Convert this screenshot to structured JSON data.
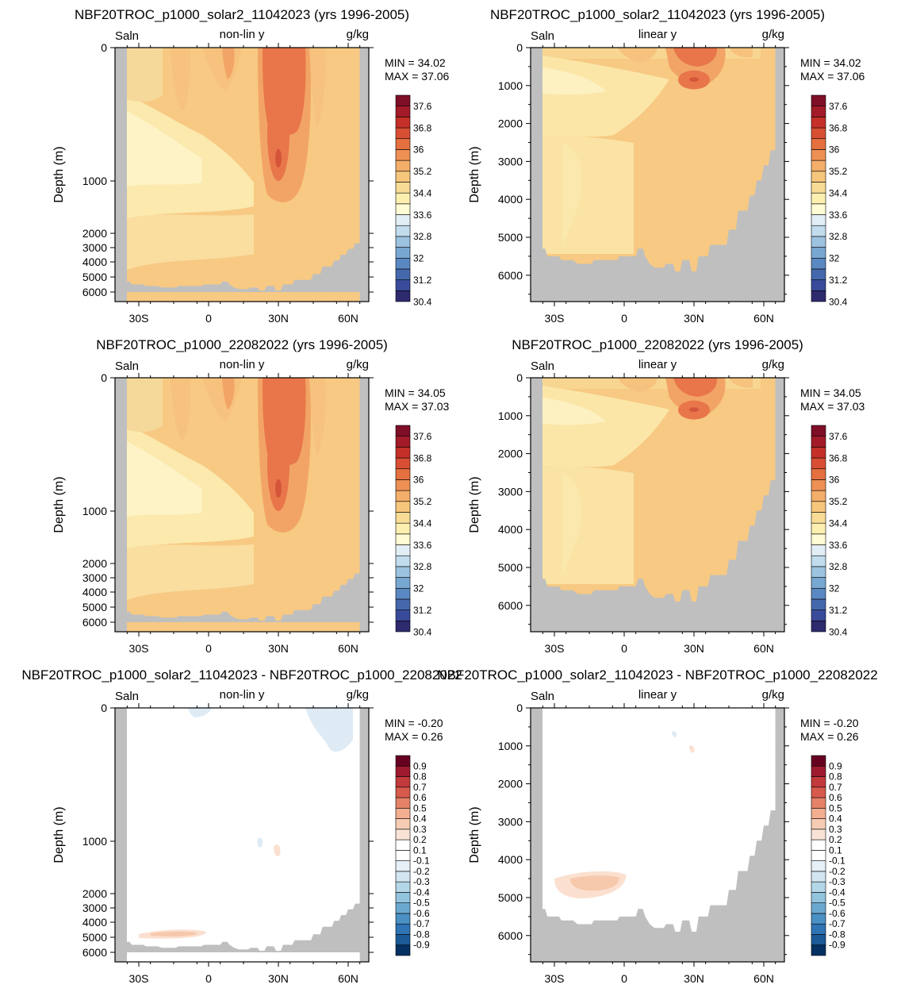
{
  "colors": {
    "land": "#bfbfbf",
    "full_field": [
      "#f5d99a",
      "#f6c27d",
      "#f2a466",
      "#e8764a",
      "#d4553a"
    ],
    "full_palette": [
      "#2e2a6e",
      "#3a4a9a",
      "#4568ad",
      "#5a88c2",
      "#78a7d2",
      "#9cc3e0",
      "#c1dced",
      "#e2eef5",
      "#fffbd4",
      "#fcefb0",
      "#f8dc95",
      "#f6c67c",
      "#f3ae69",
      "#ee9054",
      "#e5703f",
      "#d94f34",
      "#c53029",
      "#a31a28",
      "#7f0e27"
    ],
    "diff_palette": [
      "#053061",
      "#1b5a97",
      "#2f74b5",
      "#4a90c3",
      "#6aa8d0",
      "#92c4de",
      "#b4d7e8",
      "#d2e5f0",
      "#e6f0f6",
      "#ffffff",
      "#ffffff",
      "#f9e3d6",
      "#f6ccb4",
      "#f3ae91",
      "#e58268",
      "#d75a4c",
      "#c23a3b",
      "#9f1a2f",
      "#670021"
    ],
    "diff_positive": "#fbe0d0",
    "diff_positive_core": "#f6c8ac",
    "diff_negative": "#deebf5"
  },
  "panels": [
    {
      "title": "NBF20TROC_p1000_solar2_11042023 (yrs 1996-2005)",
      "left_label": "Saln",
      "center_label": "non-lin y",
      "right_label": "g/kg",
      "y_axis_label": "Depth (m)",
      "y_ticks": [
        "0",
        "1000",
        "2000",
        "3000",
        "4000",
        "5000",
        "6000"
      ],
      "x_ticks": [
        "30S",
        "0",
        "30N",
        "60N"
      ],
      "stats_min": "MIN =  34.02",
      "stats_max": "MAX =  37.06",
      "colorbar_labels": [
        "37.6",
        "36.8",
        "36",
        "35.2",
        "34.4",
        "33.6",
        "32.8",
        "32",
        "31.2",
        "30.4"
      ]
    },
    {
      "title": "NBF20TROC_p1000_solar2_11042023 (yrs 1996-2005)",
      "left_label": "Saln",
      "center_label": "linear y",
      "right_label": "g/kg",
      "y_axis_label": "Depth (m)",
      "y_ticks": [
        "0",
        "1000",
        "2000",
        "3000",
        "4000",
        "5000",
        "6000"
      ],
      "x_ticks": [
        "30S",
        "0",
        "30N",
        "60N"
      ],
      "stats_min": "MIN =  34.02",
      "stats_max": "MAX =  37.06",
      "colorbar_labels": [
        "37.6",
        "36.8",
        "36",
        "35.2",
        "34.4",
        "33.6",
        "32.8",
        "32",
        "31.2",
        "30.4"
      ]
    },
    {
      "title": "NBF20TROC_p1000_22082022 (yrs 1996-2005)",
      "left_label": "Saln",
      "center_label": "non-lin y",
      "right_label": "g/kg",
      "y_axis_label": "Depth (m)",
      "y_ticks": [
        "0",
        "1000",
        "2000",
        "3000",
        "4000",
        "5000",
        "6000"
      ],
      "x_ticks": [
        "30S",
        "0",
        "30N",
        "60N"
      ],
      "stats_min": "MIN =  34.05",
      "stats_max": "MAX =  37.03",
      "colorbar_labels": [
        "37.6",
        "36.8",
        "36",
        "35.2",
        "34.4",
        "33.6",
        "32.8",
        "32",
        "31.2",
        "30.4"
      ]
    },
    {
      "title": "NBF20TROC_p1000_22082022 (yrs 1996-2005)",
      "left_label": "Saln",
      "center_label": "linear y",
      "right_label": "g/kg",
      "y_axis_label": "Depth (m)",
      "y_ticks": [
        "0",
        "1000",
        "2000",
        "3000",
        "4000",
        "5000",
        "6000"
      ],
      "x_ticks": [
        "30S",
        "0",
        "30N",
        "60N"
      ],
      "stats_min": "MIN =  34.05",
      "stats_max": "MAX =  37.03",
      "colorbar_labels": [
        "37.6",
        "36.8",
        "36",
        "35.2",
        "34.4",
        "33.6",
        "32.8",
        "32",
        "31.2",
        "30.4"
      ]
    },
    {
      "title": "NBF20TROC_p1000_solar2_11042023 - NBF20TROC_p1000_22082022",
      "left_label": "Saln",
      "center_label": "non-lin y",
      "right_label": "g/kg",
      "y_axis_label": "Depth (m)",
      "y_ticks": [
        "0",
        "1000",
        "2000",
        "3000",
        "4000",
        "5000",
        "6000"
      ],
      "x_ticks": [
        "30S",
        "0",
        "30N",
        "60N"
      ],
      "stats_min": "MIN =  -0.20",
      "stats_max": "MAX =   0.26",
      "colorbar_labels": [
        "0.9",
        "0.8",
        "0.7",
        "0.6",
        "0.5",
        "0.4",
        "0.3",
        "0.2",
        "0.1",
        "-0.1",
        "-0.2",
        "-0.3",
        "-0.4",
        "-0.5",
        "-0.6",
        "-0.7",
        "-0.8",
        "-0.9"
      ]
    },
    {
      "title": "NBF20TROC_p1000_solar2_11042023 - NBF20TROC_p1000_22082022",
      "left_label": "Saln",
      "center_label": "linear y",
      "right_label": "g/kg",
      "y_axis_label": "Depth (m)",
      "y_ticks": [
        "0",
        "1000",
        "2000",
        "3000",
        "4000",
        "5000",
        "6000"
      ],
      "x_ticks": [
        "30S",
        "0",
        "30N",
        "60N"
      ],
      "stats_min": "MIN =  -0.20",
      "stats_max": "MAX =   0.26",
      "colorbar_labels": [
        "0.9",
        "0.8",
        "0.7",
        "0.6",
        "0.5",
        "0.4",
        "0.3",
        "0.2",
        "0.1",
        "-0.1",
        "-0.2",
        "-0.3",
        "-0.4",
        "-0.5",
        "-0.6",
        "-0.7",
        "-0.8",
        "-0.9"
      ]
    }
  ],
  "chart_data": [
    {
      "type": "heatmap",
      "variable": "Saln",
      "units": "g/kg",
      "y_scale": "non-lin",
      "min": 34.02,
      "max": 37.06,
      "x_ticks": [
        "30S",
        "0",
        "30N",
        "60N"
      ],
      "ylim": [
        6000,
        0
      ],
      "contour_levels": [
        30.4,
        30.8,
        31.2,
        31.6,
        32,
        32.4,
        32.8,
        33.2,
        33.6,
        34,
        34.4,
        34.8,
        35.2,
        35.6,
        36,
        36.4,
        36.8,
        37.2,
        37.6
      ]
    },
    {
      "type": "heatmap",
      "variable": "Saln",
      "units": "g/kg",
      "y_scale": "linear",
      "min": 34.02,
      "max": 37.06,
      "x_ticks": [
        "30S",
        "0",
        "30N",
        "60N"
      ],
      "ylim": [
        6000,
        0
      ],
      "contour_levels": [
        30.4,
        30.8,
        31.2,
        31.6,
        32,
        32.4,
        32.8,
        33.2,
        33.6,
        34,
        34.4,
        34.8,
        35.2,
        35.6,
        36,
        36.4,
        36.8,
        37.2,
        37.6
      ]
    },
    {
      "type": "heatmap",
      "variable": "Saln",
      "units": "g/kg",
      "y_scale": "non-lin",
      "min": 34.05,
      "max": 37.03,
      "x_ticks": [
        "30S",
        "0",
        "30N",
        "60N"
      ],
      "ylim": [
        6000,
        0
      ],
      "contour_levels": [
        30.4,
        30.8,
        31.2,
        31.6,
        32,
        32.4,
        32.8,
        33.2,
        33.6,
        34,
        34.4,
        34.8,
        35.2,
        35.6,
        36,
        36.4,
        36.8,
        37.2,
        37.6
      ]
    },
    {
      "type": "heatmap",
      "variable": "Saln",
      "units": "g/kg",
      "y_scale": "linear",
      "min": 34.05,
      "max": 37.03,
      "x_ticks": [
        "30S",
        "0",
        "30N",
        "60N"
      ],
      "ylim": [
        6000,
        0
      ],
      "contour_levels": [
        30.4,
        30.8,
        31.2,
        31.6,
        32,
        32.4,
        32.8,
        33.2,
        33.6,
        34,
        34.4,
        34.8,
        35.2,
        35.6,
        36,
        36.4,
        36.8,
        37.2,
        37.6
      ]
    },
    {
      "type": "heatmap",
      "variable": "Saln",
      "units": "g/kg",
      "y_scale": "non-lin",
      "min": -0.2,
      "max": 0.26,
      "x_ticks": [
        "30S",
        "0",
        "30N",
        "60N"
      ],
      "ylim": [
        6000,
        0
      ],
      "contour_levels": [
        -0.9,
        -0.8,
        -0.7,
        -0.6,
        -0.5,
        -0.4,
        -0.3,
        -0.2,
        -0.1,
        0.1,
        0.2,
        0.3,
        0.4,
        0.5,
        0.6,
        0.7,
        0.8,
        0.9
      ]
    },
    {
      "type": "heatmap",
      "variable": "Saln",
      "units": "g/kg",
      "y_scale": "linear",
      "min": -0.2,
      "max": 0.26,
      "x_ticks": [
        "30S",
        "0",
        "30N",
        "60N"
      ],
      "ylim": [
        6000,
        0
      ],
      "contour_levels": [
        -0.9,
        -0.8,
        -0.7,
        -0.6,
        -0.5,
        -0.4,
        -0.3,
        -0.2,
        -0.1,
        0.1,
        0.2,
        0.3,
        0.4,
        0.5,
        0.6,
        0.7,
        0.8,
        0.9
      ]
    }
  ]
}
